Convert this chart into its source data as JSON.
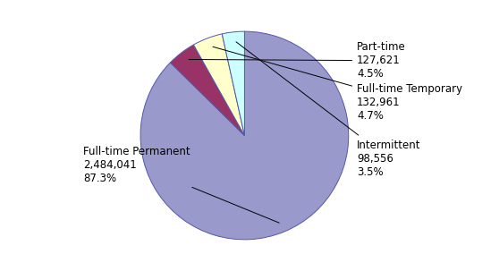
{
  "labels": [
    "Full-time Permanent",
    "Part-time",
    "Full-time Temporary",
    "Intermittent"
  ],
  "values": [
    2484041,
    127621,
    132961,
    98556
  ],
  "colors": [
    "#9999cc",
    "#993366",
    "#ffffcc",
    "#ccffff"
  ],
  "startangle": 90,
  "figsize": [
    5.58,
    3.03
  ],
  "dpi": 100,
  "edge_color": "#5555aa",
  "bg_color": "#ffffff",
  "font_size": 8.5
}
